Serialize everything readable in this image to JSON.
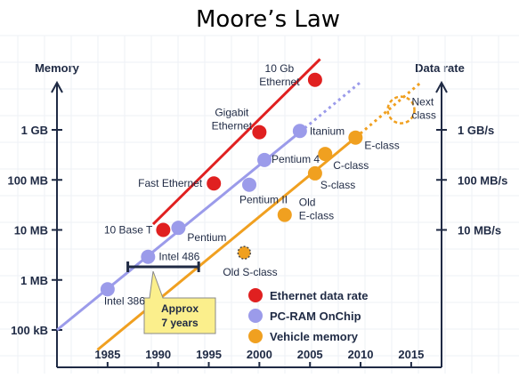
{
  "chart_data": {
    "type": "scatter",
    "title": "Moore’s Law",
    "ylabel_left": "Memory",
    "ylabel_right": "Data rate",
    "x_ticks": [
      "1985",
      "1990",
      "1995",
      "2000",
      "2005",
      "2010",
      "2015"
    ],
    "xlim": [
      1980,
      2018
    ],
    "y_scale": "log",
    "y_ticks_left": [
      {
        "label": "100 kB",
        "value": 0.1
      },
      {
        "label": "1 MB",
        "value": 1
      },
      {
        "label": "10 MB",
        "value": 10
      },
      {
        "label": "100 MB",
        "value": 100
      },
      {
        "label": "1 GB",
        "value": 1000
      }
    ],
    "y_ticks_right": [
      {
        "label": "10 MB/s",
        "value": 10
      },
      {
        "label": "100 MB/s",
        "value": 100
      },
      {
        "label": "1 GB/s",
        "value": 1000
      }
    ],
    "ylim": [
      0.06,
      20000
    ],
    "legend_position": "bottom-right",
    "series": [
      {
        "name": "Ethernet data rate",
        "color": "#e02020",
        "points": [
          {
            "label": "10 Base T",
            "x": 1990.5,
            "y": 10
          },
          {
            "label": "Fast Ethernet",
            "x": 1995.5,
            "y": 85
          },
          {
            "label": "Gigabit Ethernet",
            "x": 2000,
            "y": 900
          },
          {
            "label": "10 Gb Ethernet",
            "x": 2005.5,
            "y": 10000
          }
        ],
        "trend": {
          "x": [
            1989.5,
            2006
          ],
          "y": [
            13,
            26000
          ]
        }
      },
      {
        "name": "PC-RAM OnChip",
        "color": "#9b9bea",
        "points": [
          {
            "label": "Intel 386",
            "x": 1985,
            "y": 0.65
          },
          {
            "label": "Intel 486",
            "x": 1989,
            "y": 2.9
          },
          {
            "label": "Pentium",
            "x": 1992,
            "y": 11
          },
          {
            "label": "Pentium II",
            "x": 1999,
            "y": 80
          },
          {
            "label": "Pentium 4",
            "x": 2000.5,
            "y": 250
          },
          {
            "label": "Itanium",
            "x": 2004,
            "y": 950
          }
        ],
        "trend": {
          "x": [
            1980,
            2004
          ],
          "y": [
            0.1,
            900
          ]
        },
        "trend_dotted": {
          "x": [
            2004,
            2010
          ],
          "y": [
            900,
            9000
          ]
        }
      },
      {
        "name": "Vehicle memory",
        "color": "#f0a020",
        "points": [
          {
            "label": "Old S-class",
            "x": 1998.5,
            "y": 3.5
          },
          {
            "label": "Old E-class",
            "x": 2002.5,
            "y": 20
          },
          {
            "label": "S-class",
            "x": 2005.5,
            "y": 135
          },
          {
            "label": "C-class",
            "x": 2006.5,
            "y": 330
          },
          {
            "label": "E-class",
            "x": 2009.5,
            "y": 700
          },
          {
            "label": "Next class",
            "x": 2014,
            "y": 2500
          }
        ],
        "trend": {
          "x": [
            1984,
            2009.5
          ],
          "y": [
            0.04,
            700
          ]
        },
        "trend_dotted": {
          "x": [
            2009.5,
            2016
          ],
          "y": [
            700,
            9000
          ]
        }
      }
    ],
    "annotations": [
      {
        "text_lines": [
          "Approx",
          "7 years"
        ],
        "span_x": [
          1987,
          1994
        ]
      }
    ]
  }
}
